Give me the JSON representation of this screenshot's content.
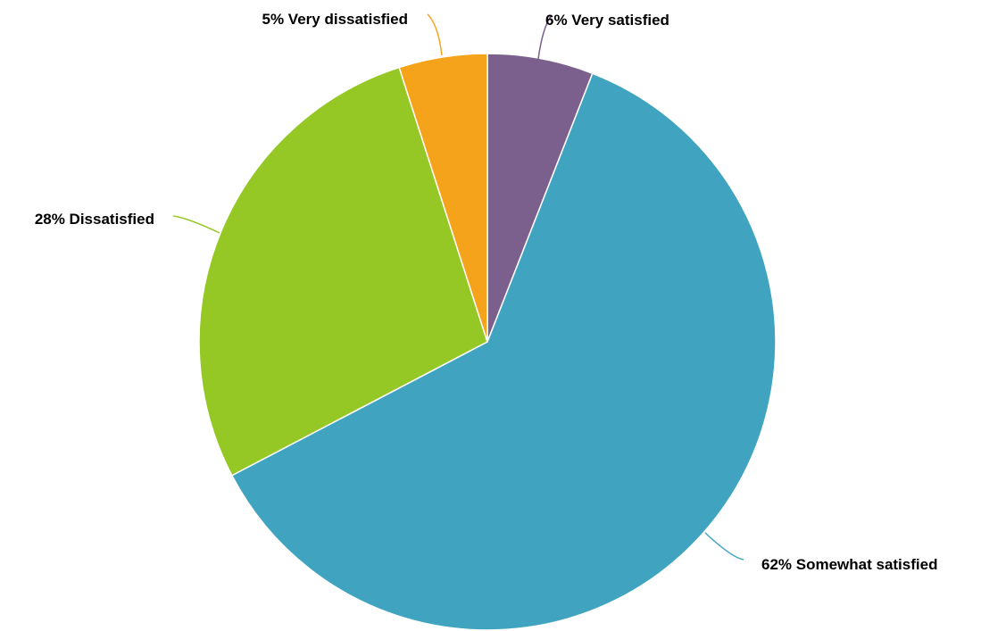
{
  "chart_data": {
    "type": "pie",
    "title": "",
    "start_angle_deg": 0,
    "direction": "clockwise",
    "slices": [
      {
        "label": "6% Very satisfied",
        "value": 6,
        "color": "#7b5f8d"
      },
      {
        "label": "62% Somewhat satisfied",
        "value": 62,
        "color": "#40a4c1"
      },
      {
        "label": "28% Dissatisfied",
        "value": 28,
        "color": "#95c825"
      },
      {
        "label": "5% Very dissatisfied",
        "value": 5,
        "color": "#f5a31b"
      }
    ]
  }
}
